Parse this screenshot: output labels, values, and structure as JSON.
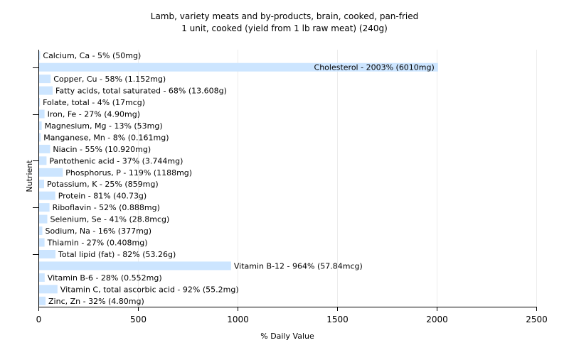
{
  "chart_data": {
    "type": "bar",
    "orientation": "horizontal",
    "title": [
      "Lamb, variety meats and by-products, brain, cooked, pan-fried",
      "1 unit, cooked (yield from 1 lb raw meat) (240g)"
    ],
    "xlabel": "% Daily Value",
    "ylabel": "Nutrient",
    "xlim": [
      0,
      2500
    ],
    "xticks": [
      0,
      500,
      1000,
      1500,
      2000,
      2500
    ],
    "grid": true,
    "bar_color": "#cce5ff",
    "categories": [
      "Calcium, Ca",
      "Cholesterol",
      "Copper, Cu",
      "Fatty acids, total saturated",
      "Folate, total",
      "Iron, Fe",
      "Magnesium, Mg",
      "Manganese, Mn",
      "Niacin",
      "Pantothenic acid",
      "Phosphorus, P",
      "Potassium, K",
      "Protein",
      "Riboflavin",
      "Selenium, Se",
      "Sodium, Na",
      "Thiamin",
      "Total lipid (fat)",
      "Vitamin B-12",
      "Vitamin B-6",
      "Vitamin C, total ascorbic acid",
      "Zinc, Zn"
    ],
    "values": [
      5,
      2003,
      58,
      68,
      4,
      27,
      13,
      8,
      55,
      37,
      119,
      25,
      81,
      52,
      41,
      16,
      27,
      82,
      964,
      28,
      92,
      32
    ],
    "labels": [
      "Calcium, Ca - 5% (50mg)",
      "Cholesterol - 2003% (6010mg)",
      "Copper, Cu - 58% (1.152mg)",
      "Fatty acids, total saturated - 68% (13.608g)",
      "Folate, total - 4% (17mcg)",
      "Iron, Fe - 27% (4.90mg)",
      "Magnesium, Mg - 13% (53mg)",
      "Manganese, Mn - 8% (0.161mg)",
      "Niacin - 55% (10.920mg)",
      "Pantothenic acid - 37% (3.744mg)",
      "Phosphorus, P - 119% (1188mg)",
      "Potassium, K - 25% (859mg)",
      "Protein - 81% (40.73g)",
      "Riboflavin - 52% (0.888mg)",
      "Selenium, Se - 41% (28.8mcg)",
      "Sodium, Na - 16% (377mg)",
      "Thiamin - 27% (0.408mg)",
      "Total lipid (fat) - 82% (53.26g)",
      "Vitamin B-12 - 964% (57.84mcg)",
      "Vitamin B-6 - 28% (0.552mg)",
      "Vitamin C, total ascorbic acid - 92% (55.2mg)",
      "Zinc, Zn - 32% (4.80mg)"
    ]
  }
}
